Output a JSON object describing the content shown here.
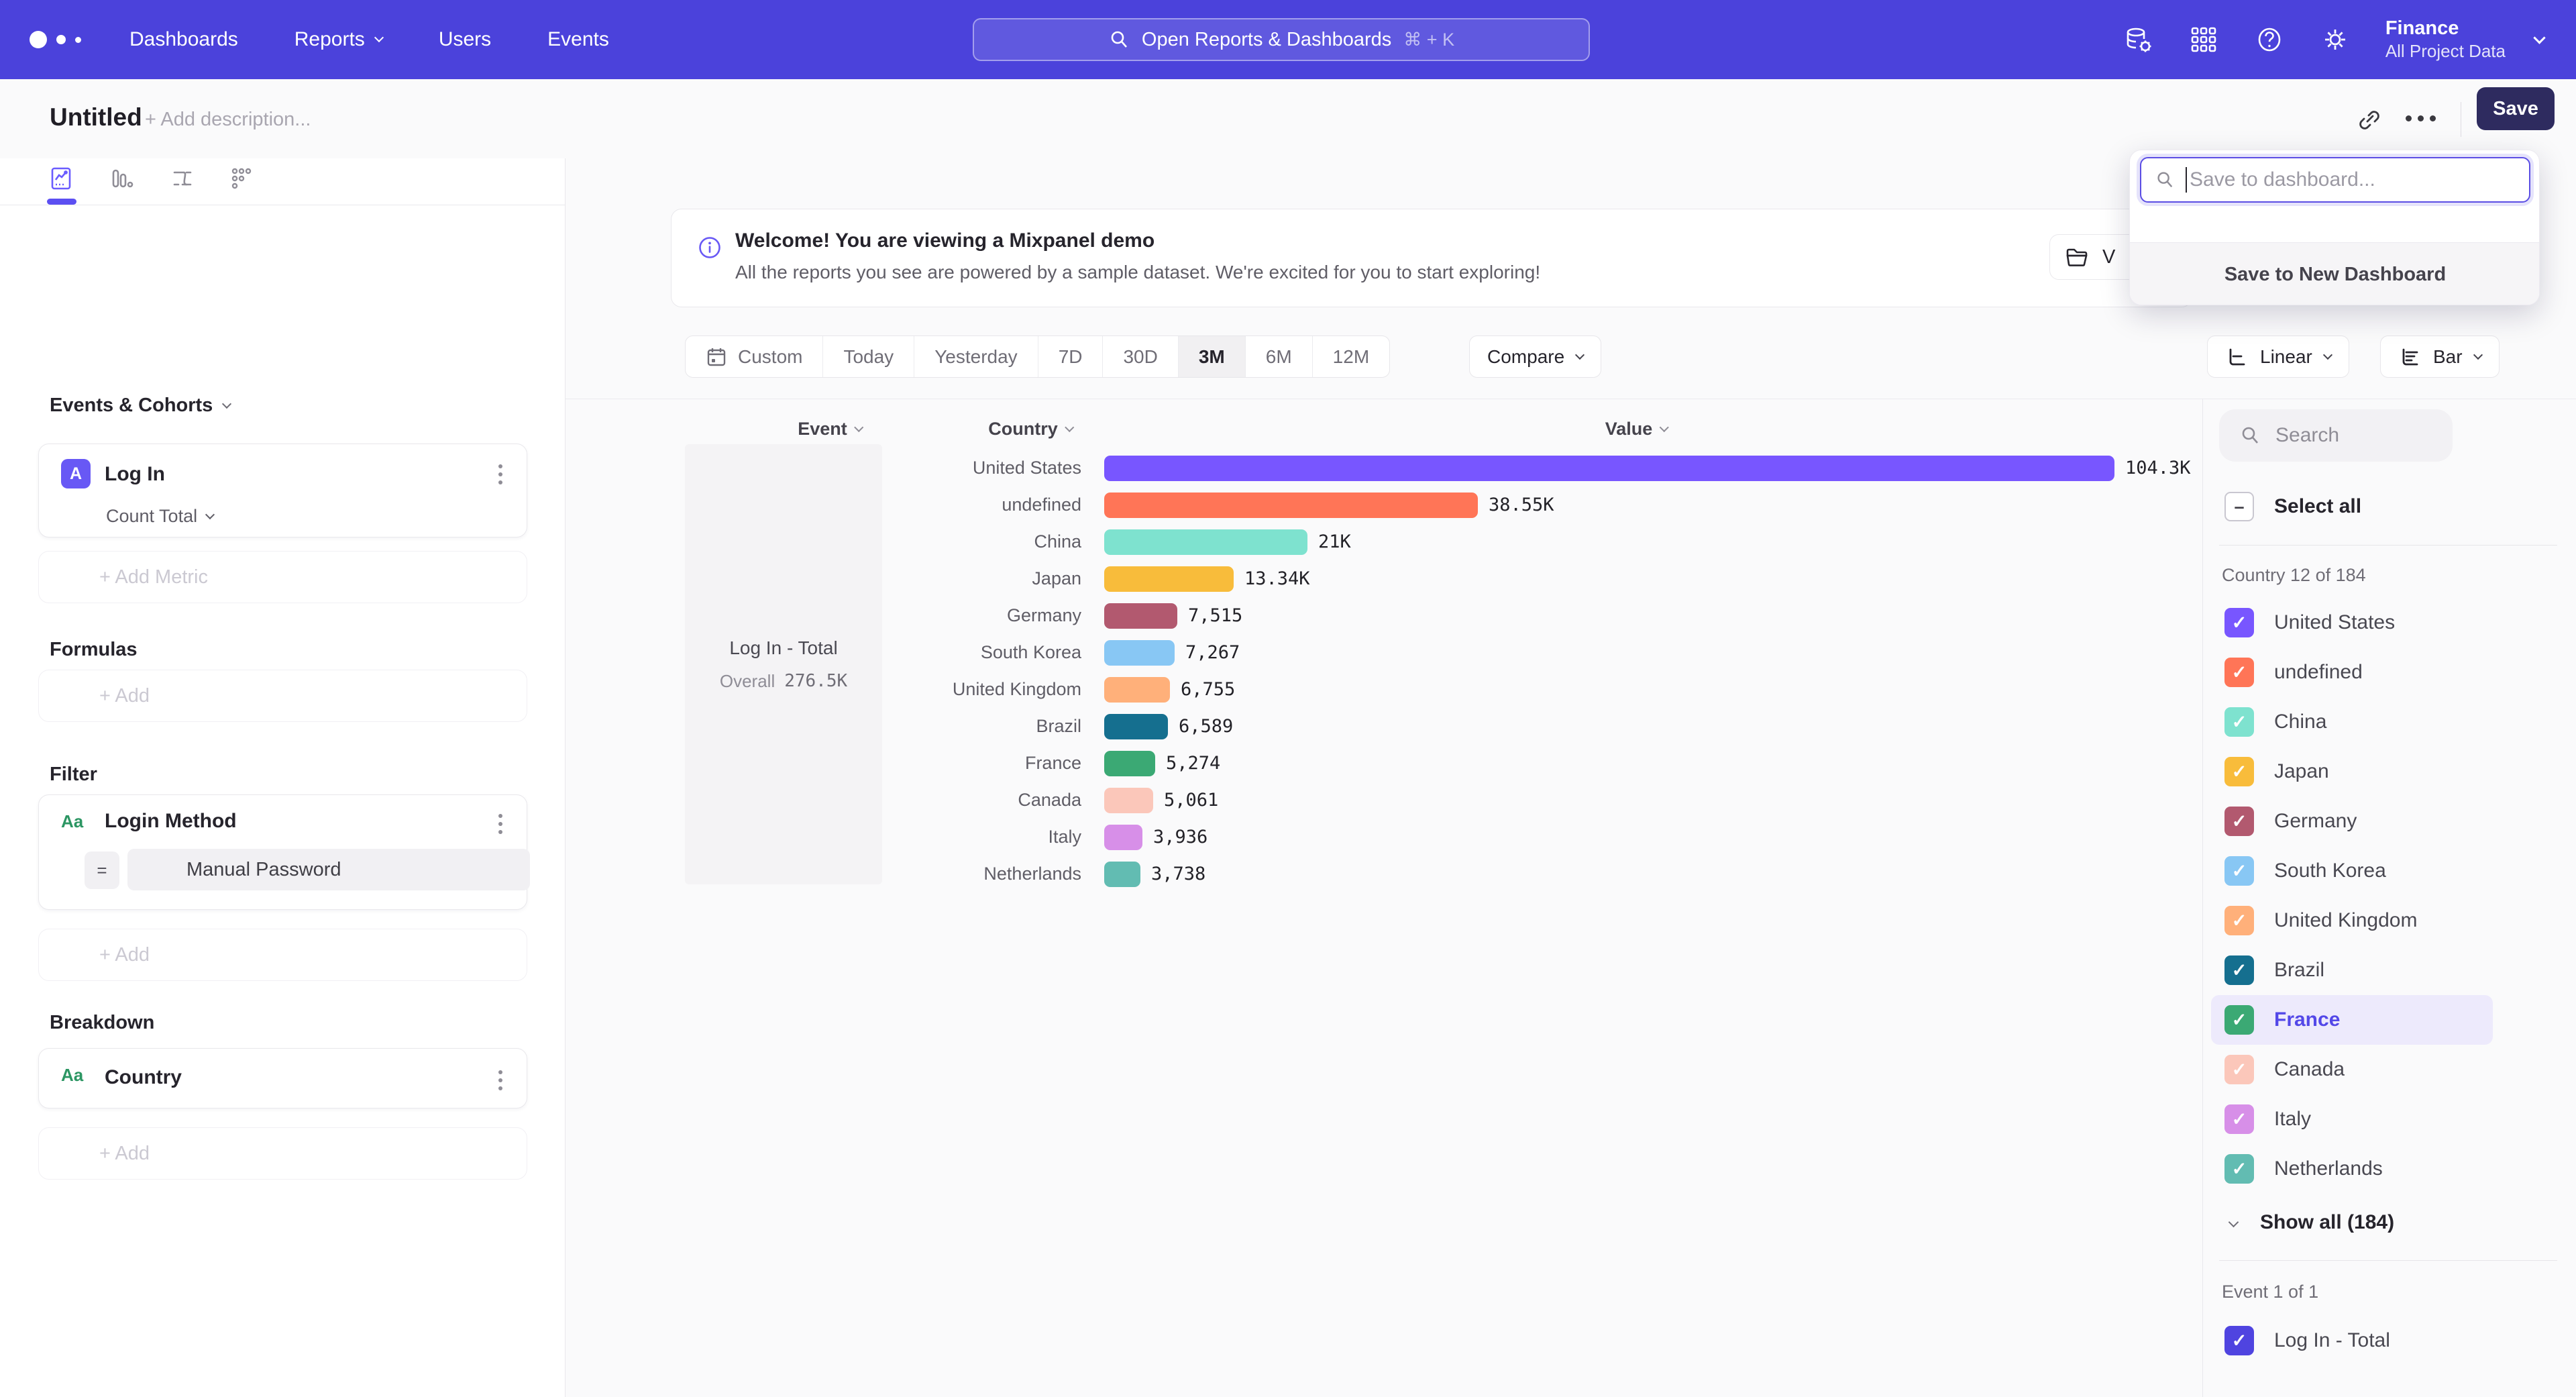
{
  "nav": {
    "links": [
      {
        "label": "Dashboards",
        "chevron": false
      },
      {
        "label": "Reports",
        "chevron": true
      },
      {
        "label": "Users",
        "chevron": false
      },
      {
        "label": "Events",
        "chevron": false
      }
    ],
    "search_placeholder": "Open Reports & Dashboards",
    "search_shortcut": "⌘ + K",
    "project_name": "Finance",
    "project_scope": "All Project Data"
  },
  "header": {
    "title": "Untitled",
    "add_description": "+ Add description...",
    "save_label": "Save"
  },
  "save_popup": {
    "input_placeholder": "Save to dashboard...",
    "new_dashboard_label": "Save to New Dashboard"
  },
  "sidebar": {
    "events_cohorts_label": "Events & Cohorts",
    "metric": {
      "badge": "A",
      "name": "Log In",
      "aggregation": "Count Total"
    },
    "add_metric_label": "+ Add Metric",
    "formulas_label": "Formulas",
    "formulas_add_label": "+ Add",
    "filter_label": "Filter",
    "filter": {
      "badge": "Aa",
      "name": "Login Method",
      "operator": "=",
      "value": "Manual Password"
    },
    "filter_add_label": "+ Add",
    "breakdown_label": "Breakdown",
    "breakdown": {
      "badge": "Aa",
      "name": "Country"
    },
    "breakdown_add_label": "+ Add"
  },
  "banner": {
    "title": "Welcome! You are viewing a Mixpanel demo",
    "description": "All the reports you see are powered by a sample dataset. We're excited for you to start exploring!",
    "partial_button_label": "V"
  },
  "controls": {
    "ranges": [
      {
        "label": "Custom",
        "active": false,
        "icon": "calendar"
      },
      {
        "label": "Today",
        "active": false
      },
      {
        "label": "Yesterday",
        "active": false
      },
      {
        "label": "7D",
        "active": false
      },
      {
        "label": "30D",
        "active": false
      },
      {
        "label": "3M",
        "active": true
      },
      {
        "label": "6M",
        "active": false
      },
      {
        "label": "12M",
        "active": false
      }
    ],
    "compare_label": "Compare",
    "line_type_label": "Linear",
    "chart_type_label": "Bar"
  },
  "chart_data": {
    "type": "bar",
    "orientation": "horizontal",
    "columns": [
      "Event",
      "Country",
      "Value"
    ],
    "series_name": "Log In - Total",
    "overall_label": "Overall",
    "overall_value": "276.5K",
    "categories": [
      "United States",
      "undefined",
      "China",
      "Japan",
      "Germany",
      "South Korea",
      "United Kingdom",
      "Brazil",
      "France",
      "Canada",
      "Italy",
      "Netherlands"
    ],
    "values": [
      104300,
      38550,
      21000,
      13340,
      7515,
      7267,
      6755,
      6589,
      5274,
      5061,
      3936,
      3738
    ],
    "value_labels": [
      "104.3K",
      "38.55K",
      "21K",
      "13.34K",
      "7,515",
      "7,267",
      "6,755",
      "6,589",
      "5,274",
      "5,061",
      "3,936",
      "3,738"
    ],
    "colors": [
      "#7856ff",
      "#ff7557",
      "#7ee2cf",
      "#f8bc3b",
      "#b2596f",
      "#88c7f4",
      "#ffb07a",
      "#156f8f",
      "#3ba974",
      "#fbc7ba",
      "#d78fe8",
      "#62bcb2"
    ],
    "xmax": 104300
  },
  "right_panel": {
    "search_placeholder": "Search",
    "select_all_label": "Select all",
    "country_group_label": "Country 12 of 184",
    "countries": [
      {
        "label": "United States",
        "color": "#7856ff",
        "checked": true,
        "highlighted": false
      },
      {
        "label": "undefined",
        "color": "#ff7557",
        "checked": true,
        "highlighted": false
      },
      {
        "label": "China",
        "color": "#7ee2cf",
        "checked": true,
        "highlighted": false
      },
      {
        "label": "Japan",
        "color": "#f8bc3b",
        "checked": true,
        "highlighted": false
      },
      {
        "label": "Germany",
        "color": "#b2596f",
        "checked": true,
        "highlighted": false
      },
      {
        "label": "South Korea",
        "color": "#88c7f4",
        "checked": true,
        "highlighted": false
      },
      {
        "label": "United Kingdom",
        "color": "#ffb07a",
        "checked": true,
        "highlighted": false
      },
      {
        "label": "Brazil",
        "color": "#156f8f",
        "checked": true,
        "highlighted": false
      },
      {
        "label": "France",
        "color": "#3ba974",
        "checked": true,
        "highlighted": true
      },
      {
        "label": "Canada",
        "color": "#fbc7ba",
        "checked": true,
        "highlighted": false
      },
      {
        "label": "Italy",
        "color": "#d78fe8",
        "checked": true,
        "highlighted": false
      },
      {
        "label": "Netherlands",
        "color": "#62bcb2",
        "checked": true,
        "highlighted": false
      }
    ],
    "show_all_label": "Show all (184)",
    "event_group_label": "Event 1 of 1",
    "event_item": {
      "label": "Log In - Total",
      "color": "#4f44e0",
      "checked": true
    }
  },
  "colors": {
    "nav_bg": "#4b42db",
    "accent": "#6858f5",
    "save_btn": "#2e2b5f",
    "highlight_row": "#edeafc"
  }
}
